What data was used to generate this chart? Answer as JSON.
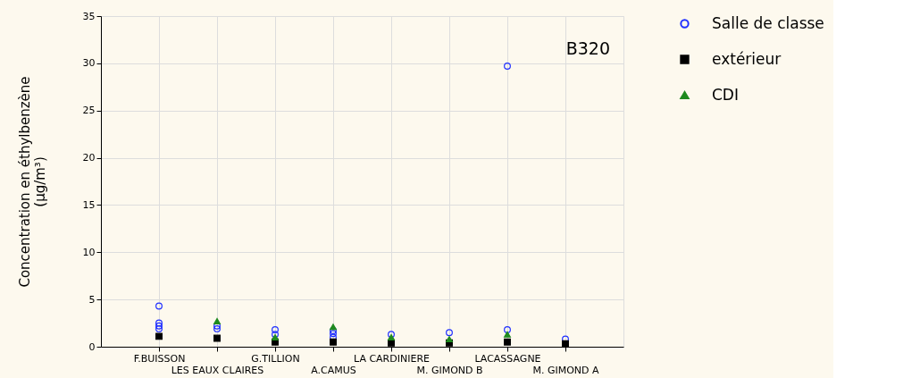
{
  "chart_data": {
    "type": "scatter",
    "categories": [
      "F.BUISSON",
      "LES EAUX CLAIRES",
      "G.TILLION",
      "A.CAMUS",
      "LA CARDINIERE",
      "M. GIMOND B",
      "LACASSAGNE",
      "M. GIMOND A"
    ],
    "series": [
      {
        "name": "Salle de classe",
        "color": "#1f2fff",
        "marker": "circle",
        "x": [
          "F.BUISSON",
          "F.BUISSON",
          "F.BUISSON",
          "F.BUISSON",
          "LES EAUX CLAIRES",
          "LES EAUX CLAIRES",
          "G.TILLION",
          "G.TILLION",
          "A.CAMUS",
          "A.CAMUS",
          "A.CAMUS",
          "LA CARDINIERE",
          "M. GIMOND B",
          "LACASSAGNE",
          "LACASSAGNE",
          "M. GIMOND A"
        ],
        "values": [
          4.3,
          2.5,
          2.2,
          1.9,
          2.2,
          1.9,
          1.8,
          1.3,
          1.7,
          1.4,
          1.0,
          1.3,
          1.5,
          29.7,
          1.8,
          0.8
        ]
      },
      {
        "name": "extérieur",
        "color": "#000000",
        "marker": "square",
        "x": [
          "F.BUISSON",
          "LES EAUX CLAIRES",
          "G.TILLION",
          "A.CAMUS",
          "LA CARDINIERE",
          "M. GIMOND B",
          "LACASSAGNE",
          "M. GIMOND A"
        ],
        "values": [
          1.1,
          0.9,
          0.5,
          0.5,
          0.4,
          0.4,
          0.5,
          0.3
        ]
      },
      {
        "name": "CDI",
        "color": "#1e8a1e",
        "marker": "triangle",
        "x": [
          "LES EAUX CLAIRES",
          "G.TILLION",
          "A.CAMUS",
          "LA CARDINIERE",
          "M. GIMOND B",
          "LACASSAGNE"
        ],
        "values": [
          2.7,
          1.0,
          2.1,
          1.0,
          0.8,
          1.3
        ]
      }
    ],
    "ylabel": "Concentration en éthylbenzène\n(µg/m³)",
    "ylim": [
      0,
      35
    ],
    "yticks": [
      0,
      5,
      10,
      15,
      20,
      25,
      30,
      35
    ],
    "annotations": [
      "B320"
    ],
    "grid": true,
    "legend": "right"
  }
}
